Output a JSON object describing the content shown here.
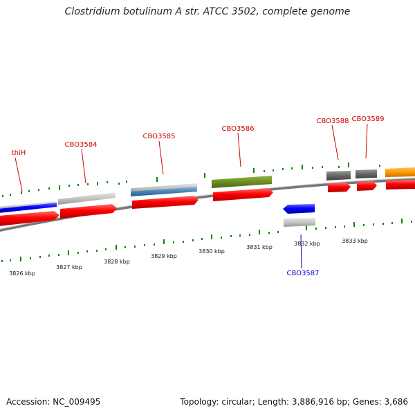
{
  "title": "Clostridium botulinum A str. ATCC 3502, complete genome",
  "footer": {
    "accession": "Accession: NC_009495",
    "summary": "Topology: circular; Length: 3,886,916 bp; Genes: 3,686"
  },
  "colors": {
    "cds_forward": "#ff0000",
    "cds_reverse": "#0000ff",
    "backbone": "#888888",
    "tick": "#008800",
    "label_forward": "#cc0000",
    "label_reverse": "#0000cc"
  },
  "scale": {
    "tick_labels": [
      "3826 kbp",
      "3827 kbp",
      "3828 kbp",
      "3829 kbp",
      "3830 kbp",
      "3831 kbp",
      "3832 kbp",
      "3833 kbp"
    ]
  },
  "genes": [
    {
      "name": "thiH",
      "strand": "forward"
    },
    {
      "name": "CBO3584",
      "strand": "forward"
    },
    {
      "name": "CBO3585",
      "strand": "forward"
    },
    {
      "name": "CBO3586",
      "strand": "forward"
    },
    {
      "name": "CBO3587",
      "strand": "reverse"
    },
    {
      "name": "CBO3588",
      "strand": "forward"
    },
    {
      "name": "CBO3589",
      "strand": "forward"
    }
  ]
}
